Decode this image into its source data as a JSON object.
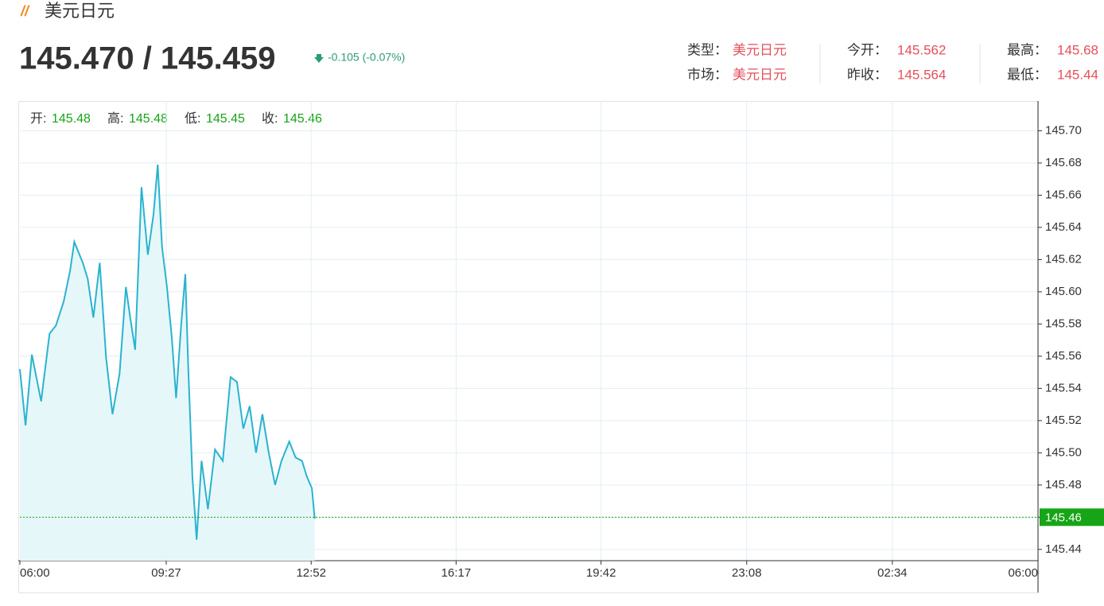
{
  "header": {
    "title": "美元日元",
    "price": "145.470 / 145.459",
    "change": "-0.105 (-0.07%)",
    "info": [
      {
        "label": "类型：",
        "value": "美元日元"
      },
      {
        "label": "今开：",
        "value": "145.562"
      },
      {
        "label": "最高：",
        "value": "145.68"
      },
      {
        "label": "市场：",
        "value": "美元日元"
      },
      {
        "label": "昨收：",
        "value": "145.564"
      },
      {
        "label": "最低：",
        "value": "145.44"
      }
    ]
  },
  "ohlc": [
    {
      "label": "开:",
      "value": "145.48"
    },
    {
      "label": "高:",
      "value": "145.48"
    },
    {
      "label": "低:",
      "value": "145.45"
    },
    {
      "label": "收:",
      "value": "145.46"
    }
  ],
  "chart_data": {
    "type": "line",
    "color": "#2ab3d0",
    "fill": "#e6f7fa",
    "x": [
      0,
      8,
      17,
      30,
      42,
      51,
      62,
      71,
      77,
      89,
      96,
      104,
      113,
      122,
      131,
      141,
      150,
      156,
      163,
      172,
      181,
      189,
      195,
      201,
      208,
      215,
      221,
      228,
      234,
      238,
      244,
      250,
      257,
      266,
      276,
      287,
      298,
      307,
      316,
      325,
      334,
      343,
      352,
      361,
      370,
      381,
      390,
      399,
      406,
      413,
      417
    ],
    "values": [
      145.552,
      145.517,
      145.561,
      145.532,
      145.574,
      145.579,
      145.594,
      145.613,
      145.631,
      145.618,
      145.608,
      145.584,
      145.618,
      145.559,
      145.524,
      145.549,
      145.603,
      145.584,
      145.564,
      145.665,
      145.623,
      145.648,
      145.679,
      145.628,
      145.603,
      145.571,
      145.534,
      145.579,
      145.611,
      145.554,
      145.485,
      145.446,
      145.495,
      145.465,
      145.502,
      145.495,
      145.547,
      145.544,
      145.515,
      145.529,
      145.5,
      145.524,
      145.5,
      145.48,
      145.495,
      145.507,
      145.497,
      145.495,
      145.485,
      145.478,
      145.459
    ],
    "last_price": 145.46,
    "last_color": "#16a516",
    "xlim": [
      0,
      1440
    ],
    "xticks": [
      {
        "value": 0,
        "label": "06:00"
      },
      {
        "value": 207,
        "label": "09:27"
      },
      {
        "value": 412,
        "label": "12:52"
      },
      {
        "value": 617,
        "label": "16:17"
      },
      {
        "value": 822,
        "label": "19:42"
      },
      {
        "value": 1028,
        "label": "23:08"
      },
      {
        "value": 1234,
        "label": "02:34"
      },
      {
        "value": 1440,
        "label": "06:00"
      }
    ],
    "ylim": [
      145.433,
      145.7185
    ],
    "yticks": [
      145.44,
      145.46,
      145.48,
      {
        "value": 145.5,
        "label": "145.50"
      },
      145.52,
      145.54,
      145.56,
      145.58,
      {
        "value": 145.6,
        "label": "145.60"
      },
      145.62,
      145.64,
      145.66,
      145.68,
      {
        "value": 145.7,
        "label": "145.70"
      }
    ],
    "grid": true
  }
}
